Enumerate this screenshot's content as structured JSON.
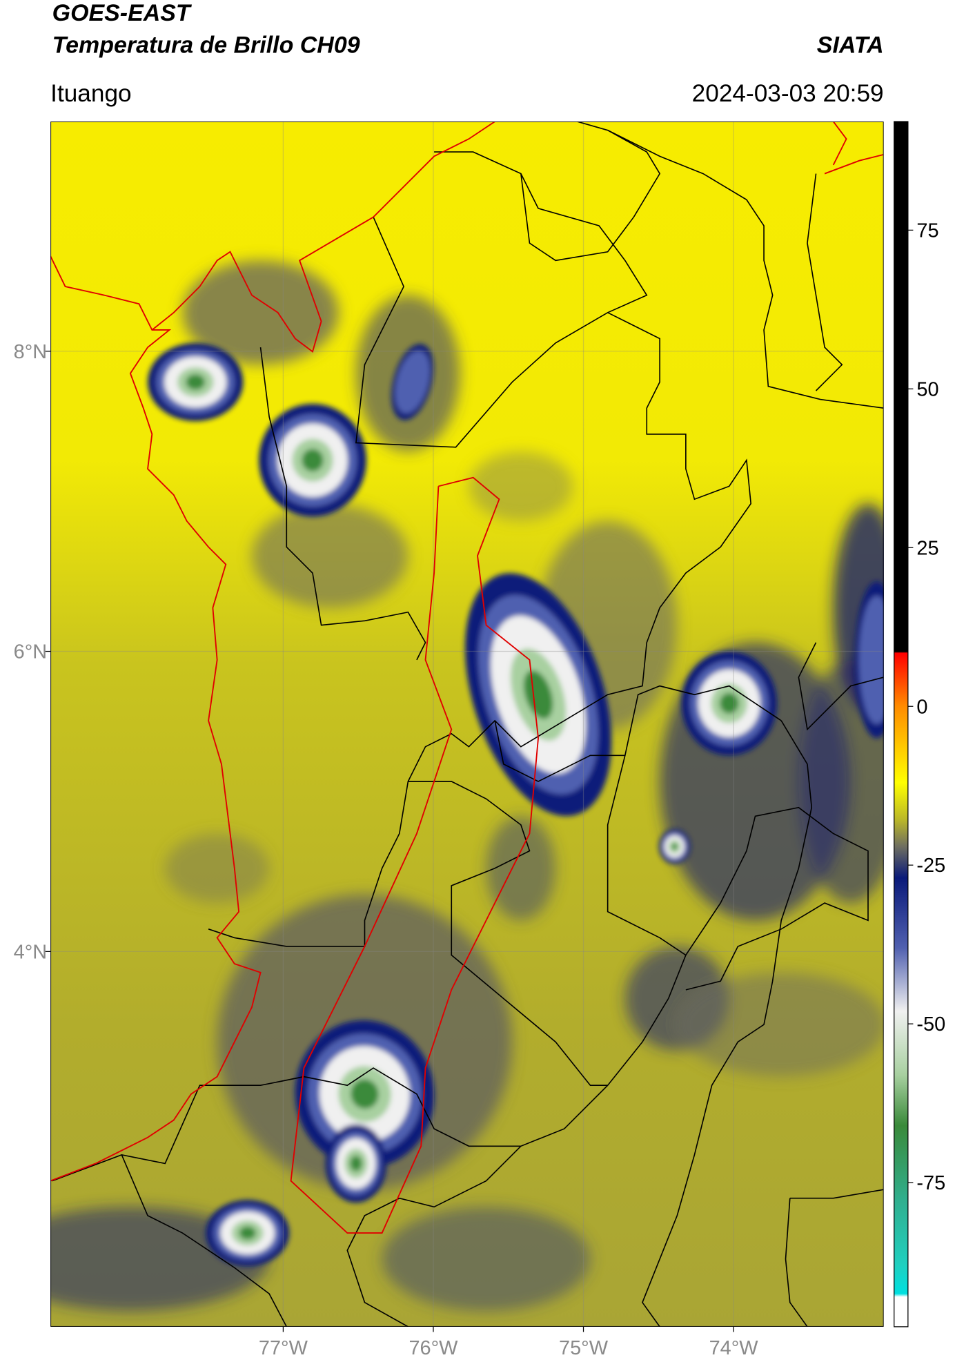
{
  "header": {
    "title": "GOES-EAST",
    "subtitle": "Temperatura de Brillo CH09",
    "source": "SIATA",
    "location": "Ituango",
    "datetime": "2024-03-03 20:59"
  },
  "map": {
    "xlim": [
      -78.55,
      -73.0
    ],
    "ylim": [
      1.5,
      9.53
    ],
    "xticks": [
      {
        "value": -77,
        "label": "77°W"
      },
      {
        "value": -76,
        "label": "76°W"
      },
      {
        "value": -75,
        "label": "75°W"
      },
      {
        "value": -74,
        "label": "74°W"
      }
    ],
    "yticks": [
      {
        "value": 8,
        "label": "8°N"
      },
      {
        "value": 6,
        "label": "6°N"
      },
      {
        "value": 4,
        "label": "4°N"
      }
    ],
    "grid": true
  },
  "colorbar": {
    "lim": [
      -97.7,
      92.1
    ],
    "ticks": [
      75,
      50,
      25,
      0,
      -25,
      -50,
      -75
    ],
    "colormap": [
      {
        "value": 92.1,
        "color": "#000000"
      },
      {
        "value": 8.6,
        "color": "#000000"
      },
      {
        "value": 8.4,
        "color": "#ff0000"
      },
      {
        "value": 0,
        "color": "#ff8c00"
      },
      {
        "value": -12,
        "color": "#ffff00"
      },
      {
        "value": -18,
        "color": "#b8b52a"
      },
      {
        "value": -22,
        "color": "#707060"
      },
      {
        "value": -27,
        "color": "#0a1a7a"
      },
      {
        "value": -38,
        "color": "#5060b0"
      },
      {
        "value": -48,
        "color": "#f0f0f0"
      },
      {
        "value": -58,
        "color": "#a8d0a0"
      },
      {
        "value": -66,
        "color": "#3a8a3a"
      },
      {
        "value": -78,
        "color": "#30b090"
      },
      {
        "value": -88,
        "color": "#20d0c0"
      },
      {
        "value": -92.5,
        "color": "#00e0e0"
      },
      {
        "value": -93,
        "color": "#ffffff"
      },
      {
        "value": -97.7,
        "color": "#ffffff"
      }
    ]
  }
}
